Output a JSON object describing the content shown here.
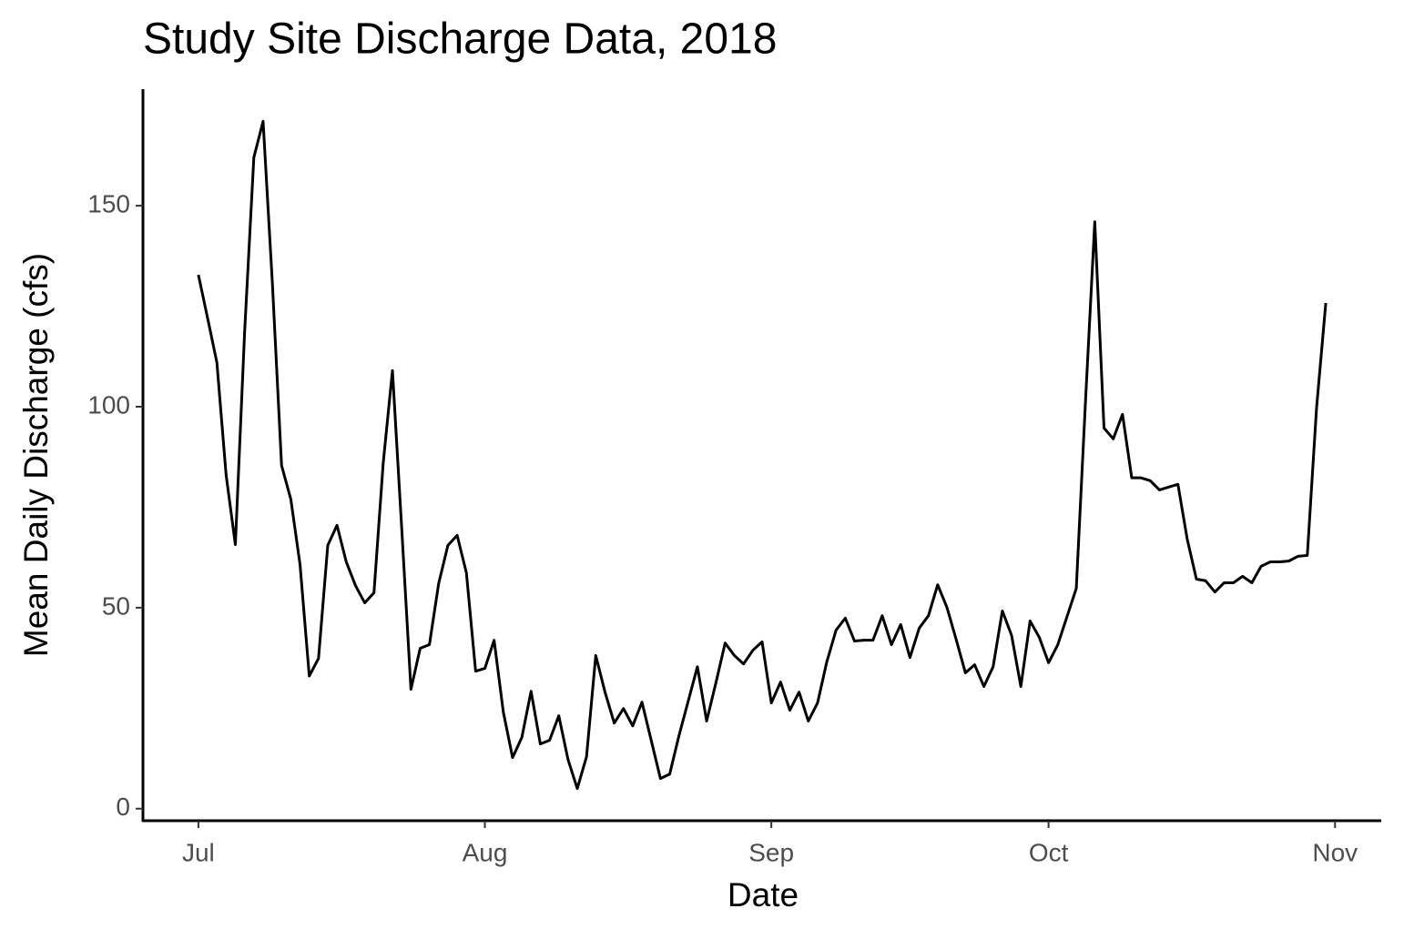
{
  "chart_data": {
    "type": "line",
    "title": "Study Site Discharge Data, 2018",
    "x_label": "Date",
    "y_label": "Mean Daily Discharge (cfs)",
    "x": [
      0,
      1,
      2,
      3,
      4,
      5,
      6,
      7,
      8,
      9,
      10,
      11,
      12,
      13,
      14,
      15,
      16,
      17,
      18,
      19,
      20,
      21,
      22,
      23,
      24,
      25,
      26,
      27,
      28,
      29,
      30,
      31,
      32,
      33,
      34,
      35,
      36,
      37,
      38,
      39,
      40,
      41,
      42,
      43,
      44,
      45,
      46,
      47,
      48,
      49,
      50,
      51,
      52,
      53,
      54,
      55,
      56,
      57,
      58,
      59,
      60,
      61,
      62,
      63,
      64,
      65,
      66,
      67,
      68,
      69,
      70,
      71,
      72,
      73,
      74,
      75,
      76,
      77,
      78,
      79,
      80,
      81,
      82,
      83,
      84,
      85,
      86,
      87,
      88,
      89,
      90,
      91,
      92,
      93,
      94,
      95,
      96,
      97,
      98,
      99,
      100,
      101,
      102,
      103,
      104,
      105,
      106,
      107,
      108,
      109,
      110,
      111,
      112,
      113,
      114,
      115,
      116,
      117,
      118,
      119,
      120,
      121,
      122
    ],
    "series": [
      {
        "color": "#000000",
        "values": [
          132.8,
          122,
          111,
          83,
          65.7,
          118.5,
          162,
          171,
          131,
          85.4,
          77,
          60.7,
          33,
          37.4,
          65.5,
          70.5,
          61.4,
          55.5,
          51.2,
          53.7,
          86,
          109,
          69.8,
          29.7,
          39.9,
          40.8,
          56,
          65.5,
          68,
          58.7,
          34.2,
          34.9,
          41.9,
          24,
          12.7,
          17.7,
          29.2,
          16.1,
          17,
          23.1,
          12.2,
          5,
          12.9,
          38.1,
          29,
          21.3,
          24.9,
          20.6,
          26.5,
          17,
          7.5,
          8.6,
          18.1,
          26.7,
          35.3,
          21.8,
          31.3,
          41.2,
          38.1,
          36,
          39.4,
          41.5,
          26.3,
          31.5,
          24.5,
          29,
          21.8,
          26.3,
          36.5,
          44.4,
          47.4,
          41.7,
          41.9,
          41.9,
          48,
          40.8,
          45.8,
          37.6,
          44.9,
          48,
          55.7,
          50.1,
          42.1,
          33.8,
          35.8,
          30.4,
          35.3,
          49.2,
          43.1,
          30.4,
          46.7,
          42.6,
          36.3,
          40.8,
          47.8,
          54.8,
          101.5,
          146,
          94.7,
          92,
          98.1,
          82.3,
          82.3,
          81.6,
          79.3,
          80,
          80.7,
          67.1,
          57.1,
          56.7,
          53.9,
          56.2,
          56.2,
          57.8,
          56.2,
          60.3,
          61.4,
          61.4,
          61.6,
          62.8,
          63,
          99.7,
          125.8
        ]
      }
    ],
    "xlim": [
      -6,
      128
    ],
    "xticks": [
      {
        "value": 0,
        "label": "Jul"
      },
      {
        "value": 31,
        "label": "Aug"
      },
      {
        "value": 62,
        "label": "Sep"
      },
      {
        "value": 92,
        "label": "Oct"
      },
      {
        "value": 123,
        "label": "Nov"
      }
    ],
    "ylim": [
      -3,
      179
    ],
    "yticks": [
      0,
      50,
      100,
      150
    ]
  }
}
